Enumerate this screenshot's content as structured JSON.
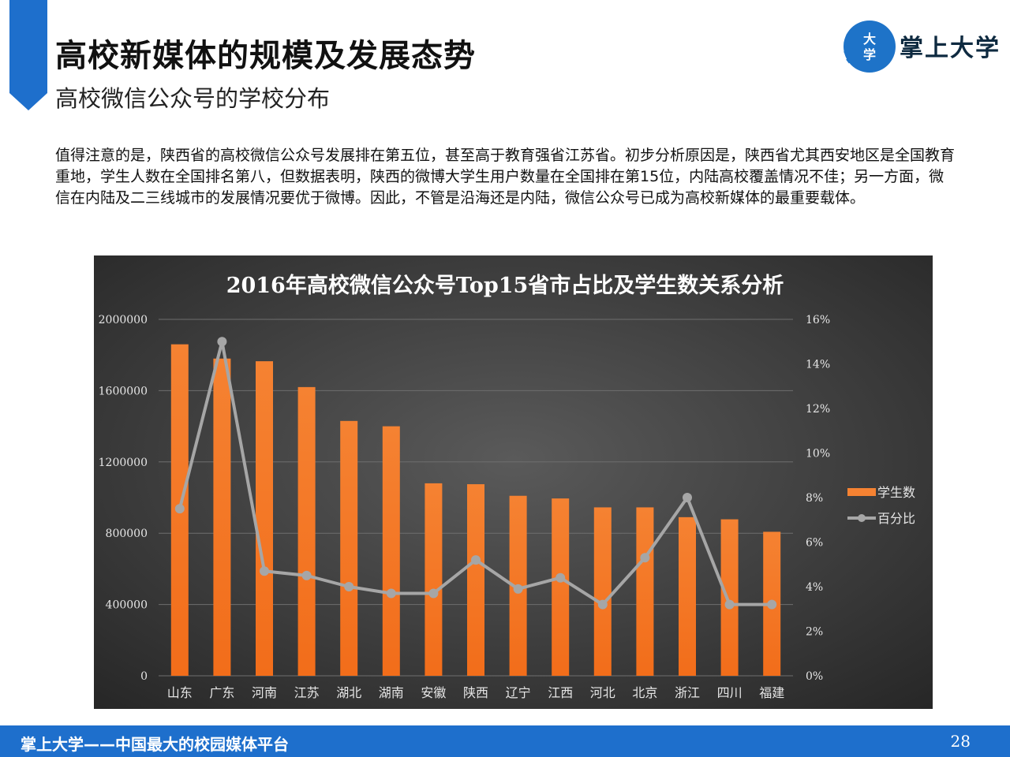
{
  "header": {
    "title": "高校新媒体的规模及发展态势",
    "subtitle": "高校微信公众号的学校分布"
  },
  "logo": {
    "badge_text": "大学",
    "brand_text": "掌上大学",
    "colors": {
      "circle": "#1e73c8",
      "text": "#0e2a40"
    }
  },
  "body": {
    "paragraph": "值得注意的是，陕西省的高校微信公众号发展排在第五位，甚至高于教育强省江苏省。初步分析原因是，陕西省尤其西安地区是全国教育重地，学生人数在全国排名第八，但数据表明，陕西的微博大学生用户数量在全国排在第15位，内陆高校覆盖情况不佳；另一方面，微信在内陆及二三线城市的发展情况要优于微博。因此，不管是沿海还是内陆，微信公众号已成为高校新媒体的最重要载体。"
  },
  "footer": {
    "text": "掌上大学——中国最大的校园媒体平台",
    "page_number": "28",
    "color": "#1e6fcc"
  },
  "chart_data": {
    "type": "bar",
    "title": "2016年高校微信公众号Top15省市占比及学生数关系分析",
    "categories": [
      "山东",
      "广东",
      "河南",
      "江苏",
      "湖北",
      "湖南",
      "安徽",
      "陕西",
      "辽宁",
      "江西",
      "河北",
      "北京",
      "浙江",
      "四川",
      "福建"
    ],
    "series": [
      {
        "name": "学生数",
        "type": "bar",
        "axis": "left",
        "color": "#f58232",
        "values": [
          1860000,
          1780000,
          1765000,
          1620000,
          1430000,
          1400000,
          1080000,
          1075000,
          1010000,
          995000,
          945000,
          945000,
          890000,
          878000,
          808000
        ]
      },
      {
        "name": "百分比",
        "type": "line",
        "axis": "right",
        "color": "#a6a6a6",
        "values": [
          7.5,
          15.0,
          4.7,
          4.5,
          4.0,
          3.7,
          3.7,
          5.2,
          3.9,
          4.4,
          3.2,
          5.3,
          8.0,
          3.2,
          3.2
        ]
      }
    ],
    "y_left": {
      "min": 0,
      "max": 2000000,
      "ticks": [
        "0",
        "400000",
        "800000",
        "1200000",
        "1600000",
        "2000000"
      ]
    },
    "y_right": {
      "min": 0,
      "max": 16,
      "ticks": [
        "0%",
        "2%",
        "4%",
        "6%",
        "8%",
        "10%",
        "12%",
        "14%",
        "16%"
      ]
    },
    "grid": true,
    "legend_position": "right"
  }
}
